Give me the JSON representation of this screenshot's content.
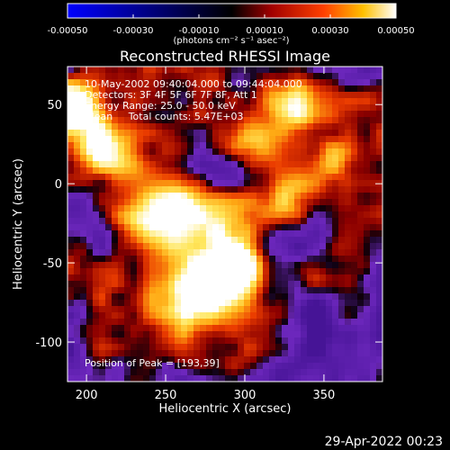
{
  "footer": {
    "date": "29-Apr-2022 00:23"
  },
  "colorbar": {
    "tick_labels": [
      "-0.00050",
      "-0.00030",
      "-0.00010",
      "0.00010",
      "0.00030",
      "0.00050"
    ],
    "tick_values": [
      -0.0005,
      -0.0003,
      -0.0001,
      0.0001,
      0.0003,
      0.0005
    ],
    "range": [
      -0.0005,
      0.0005
    ],
    "unit_label": "(photons cm⁻² s⁻¹ asec⁻²)",
    "colors": [
      "#0000ff",
      "#000000",
      "#b00000",
      "#ff6000",
      "#ffd000",
      "#ffffff"
    ]
  },
  "chart_data": {
    "type": "heatmap",
    "title": "Reconstructed RHESSI Image",
    "xlabel": "Heliocentric X (arcsec)",
    "ylabel": "Heliocentric Y (arcsec)",
    "xlim": [
      188,
      387
    ],
    "ylim": [
      -125,
      74
    ],
    "x_ticks": [
      200,
      250,
      300,
      350
    ],
    "y_ticks": [
      -100,
      -50,
      0,
      50
    ],
    "annotations": [
      "10-May-2002 09:40:04.000 to 09:44:04.000",
      "Detectors: 3F 4F 5F 6F 7F 8F, Att 1",
      "Energy Range: 25.0 - 50.0 keV",
      "Clean     Total counts: 5.47E+03"
    ],
    "peak_label": "Position of Peak = [193,39]",
    "peak_position": [
      193,
      39
    ],
    "grid": false
  }
}
